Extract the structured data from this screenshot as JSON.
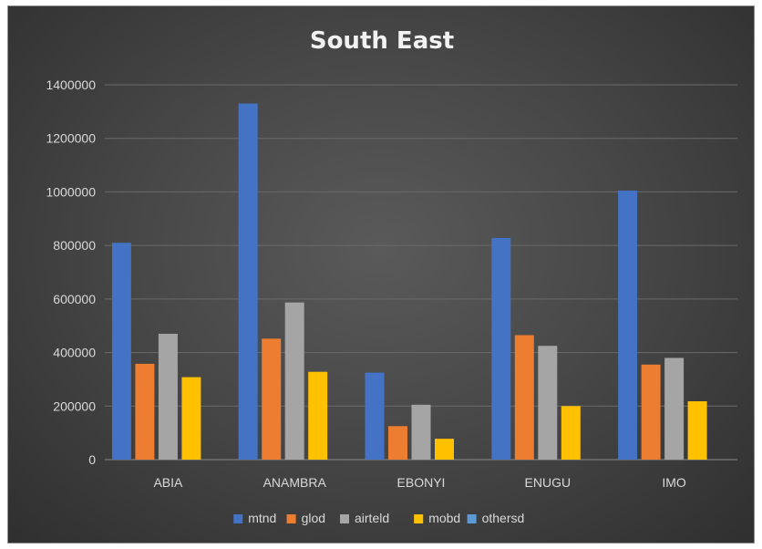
{
  "chart_data": {
    "type": "bar",
    "title": "South East",
    "categories": [
      "ABIA",
      "ANAMBRA",
      "EBONYI",
      "ENUGU",
      "IMO"
    ],
    "series": [
      {
        "name": "mtnd",
        "color": "#4472c4",
        "values": [
          810000,
          1330000,
          325000,
          828000,
          1005000
        ]
      },
      {
        "name": "glod",
        "color": "#ed7d31",
        "values": [
          358000,
          452000,
          125000,
          465000,
          355000
        ]
      },
      {
        "name": "airteld",
        "color": "#a5a5a5",
        "values": [
          470000,
          587000,
          205000,
          425000,
          380000
        ]
      },
      {
        "name": "mobd",
        "color": "#ffc000",
        "values": [
          308000,
          328000,
          78000,
          200000,
          218000
        ]
      },
      {
        "name": "othersd",
        "color": "#5b9bd5",
        "values": [
          0,
          0,
          0,
          0,
          0
        ]
      }
    ],
    "y_ticks": [
      "0",
      "200000",
      "400000",
      "600000",
      "800000",
      "1000000",
      "1200000",
      "1400000"
    ],
    "ylim": [
      0,
      1400000
    ],
    "grid": true,
    "legend_position": "bottom",
    "xlabel": "",
    "ylabel": ""
  }
}
